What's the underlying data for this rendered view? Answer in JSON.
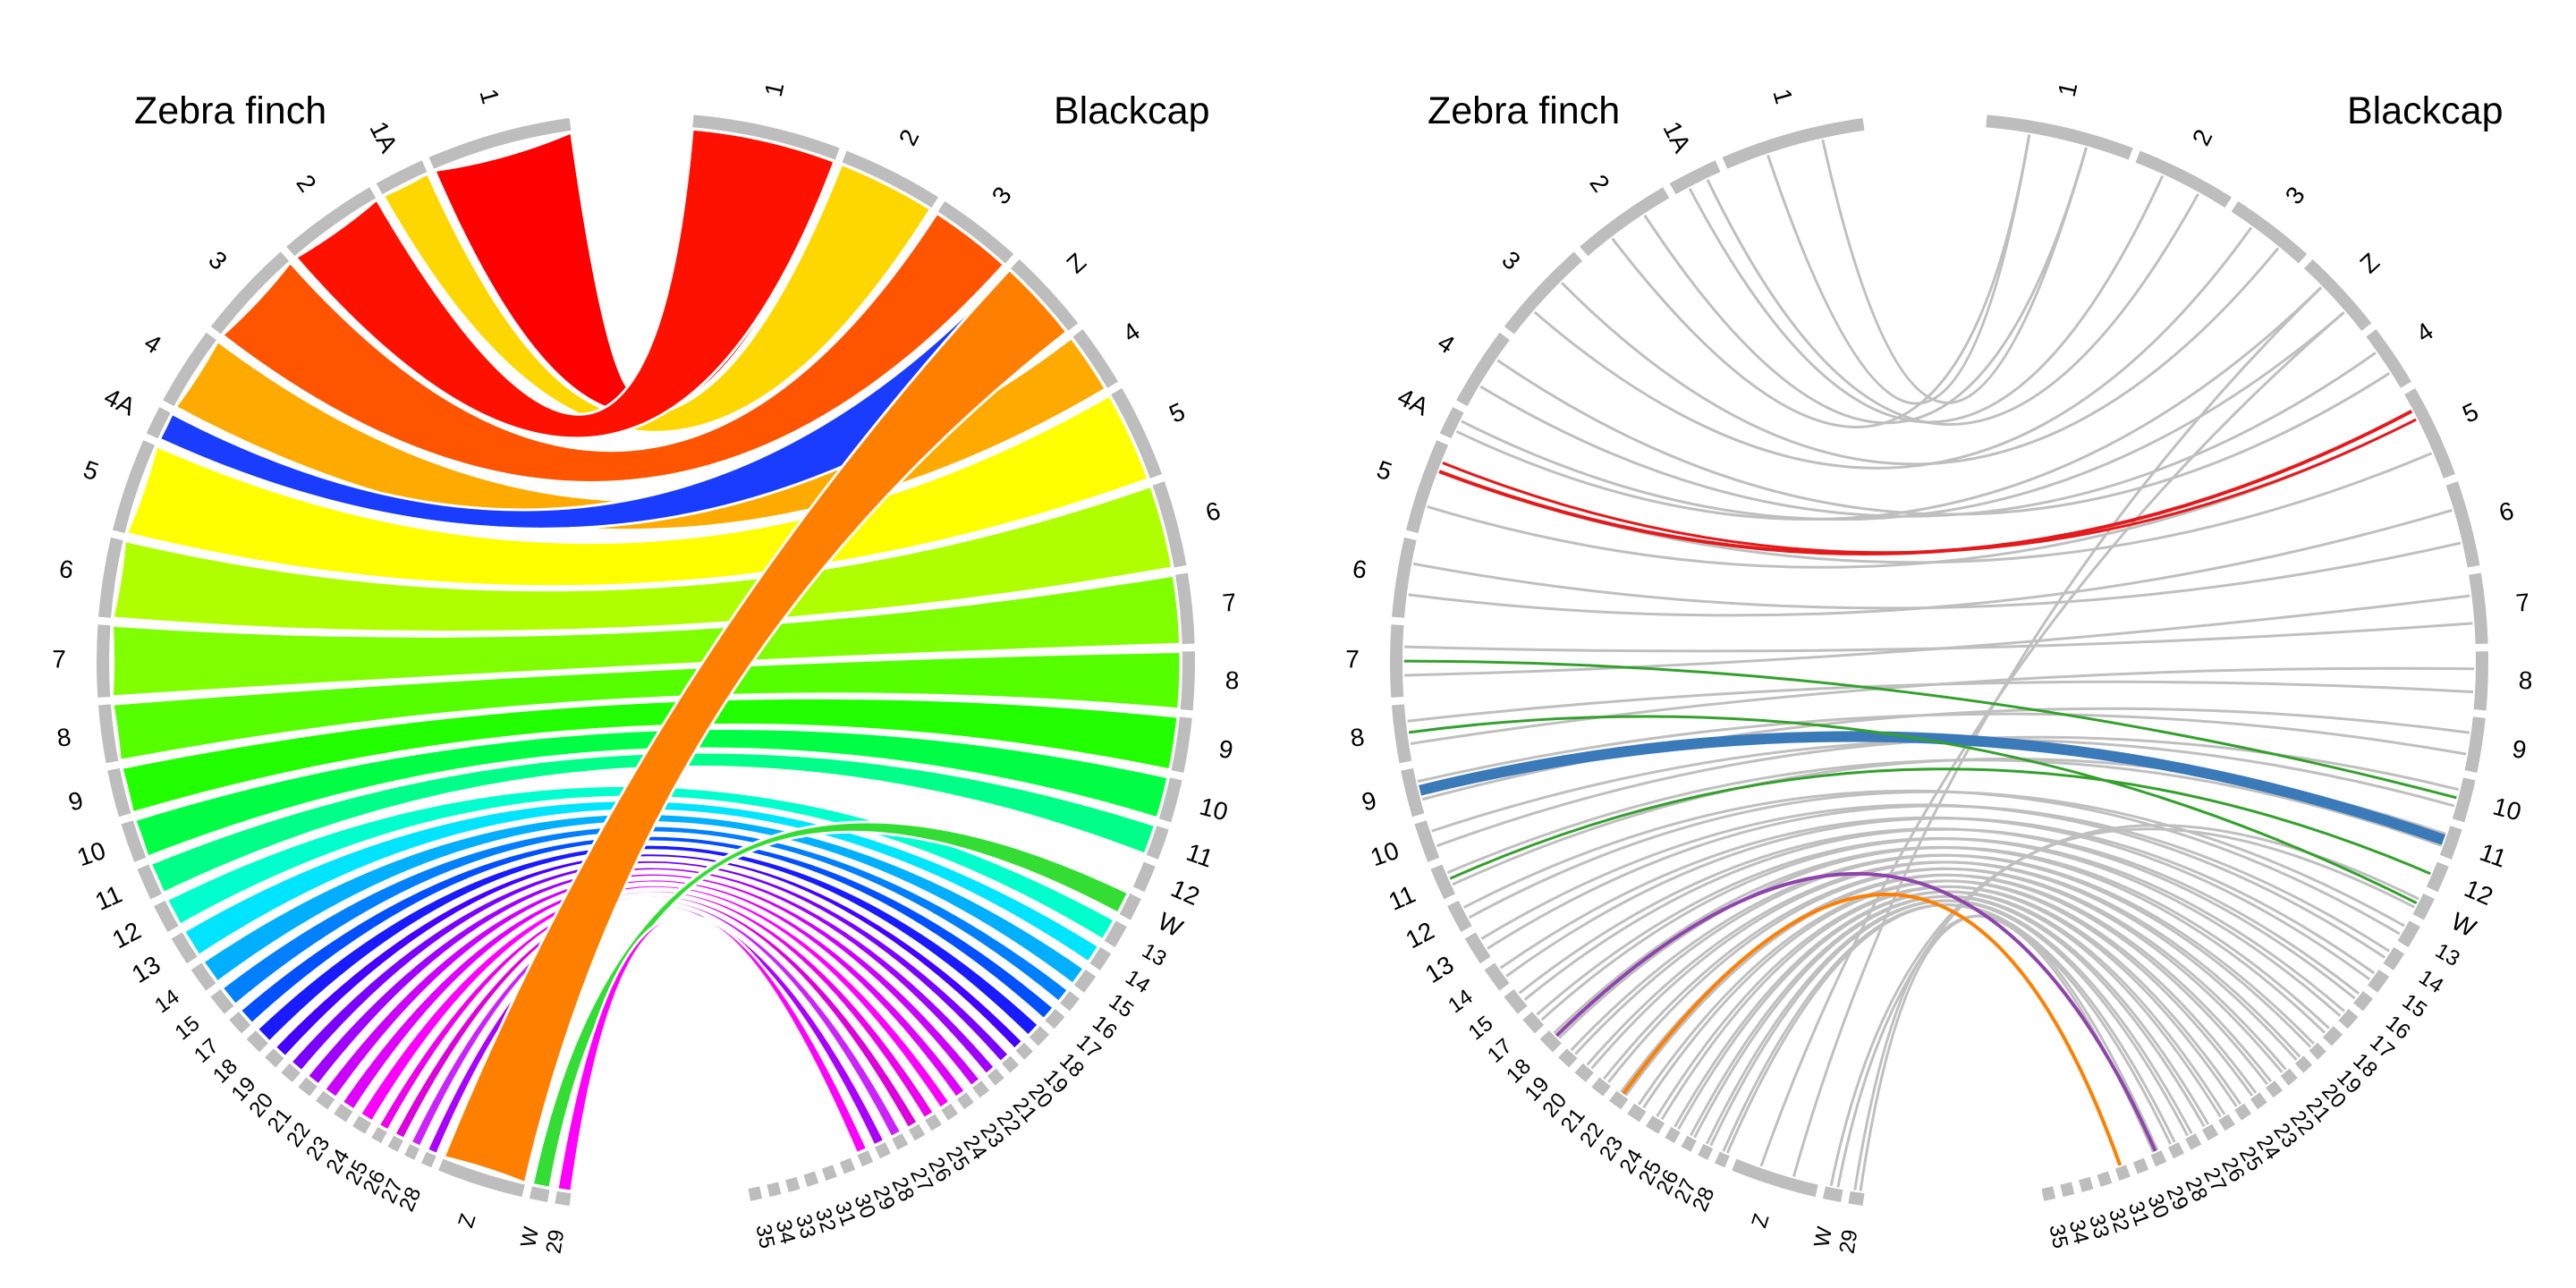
{
  "panels": [
    {
      "id": "left",
      "left_title": "Zebra finch",
      "right_title": "Blackcap",
      "style": "ribbons"
    },
    {
      "id": "right",
      "left_title": "Zebra finch",
      "right_title": "Blackcap",
      "style": "links"
    }
  ],
  "zebra_finch_chromosomes": [
    "1",
    "1A",
    "2",
    "3",
    "4",
    "4A",
    "5",
    "6",
    "7",
    "8",
    "9",
    "10",
    "11",
    "12",
    "13",
    "14",
    "15",
    "17",
    "18",
    "19",
    "20",
    "21",
    "22",
    "23",
    "24",
    "25",
    "26",
    "27",
    "28",
    "Z",
    "W",
    "29"
  ],
  "blackcap_chromosomes": [
    "1",
    "2",
    "3",
    "Z",
    "4",
    "5",
    "6",
    "7",
    "8",
    "9",
    "10",
    "11",
    "12",
    "W",
    "13",
    "14",
    "15",
    "16",
    "17",
    "18",
    "19",
    "20",
    "21",
    "22",
    "23",
    "24",
    "25",
    "26",
    "27",
    "28",
    "29",
    "30",
    "31",
    "32",
    "33",
    "34",
    "35"
  ],
  "colors": {
    "track_gray": "#bdbdbd",
    "link_gray": "#bfbfbf",
    "red_link": "#e31a1c",
    "blue_link": "#3a7ab8",
    "green_link": "#33a02c",
    "purple_link": "#8e44ad",
    "orange_link": "#ff7f00"
  }
}
